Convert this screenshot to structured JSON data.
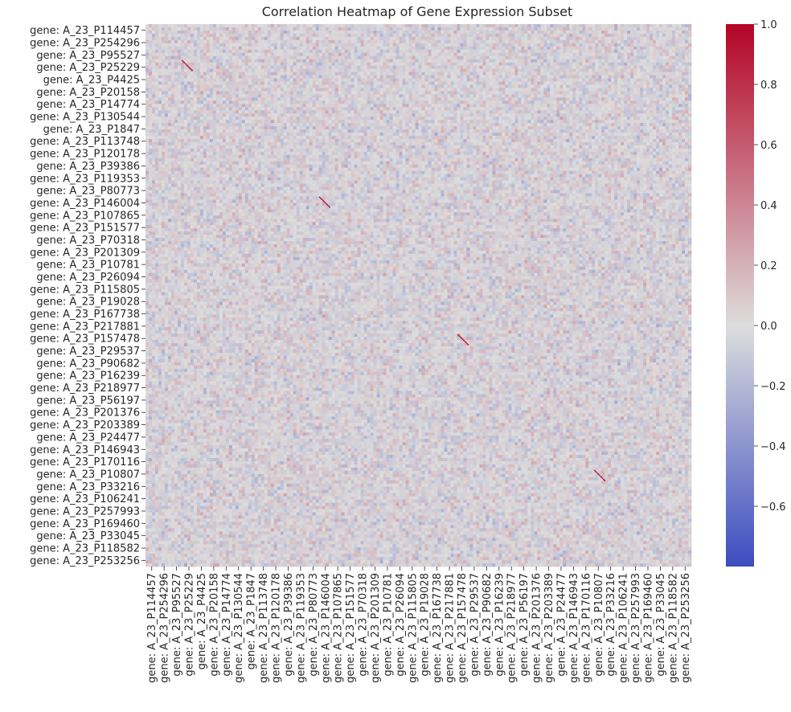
{
  "chart_data": {
    "type": "heatmap",
    "title": "Correlation Heatmap of Gene Expression Subset",
    "xlabel": "",
    "ylabel": "",
    "colormap": "coolwarm",
    "colors": {
      "low": "#3b4cc0",
      "mid": "#dddddd",
      "high": "#b40426"
    },
    "tick_labels": [
      "gene: A_23_P114457",
      "gene: A_23_P254296",
      "gene: A_23_P95527",
      "gene: A_23_P25229",
      "gene: A_23_P4425",
      "gene: A_23_P20158",
      "gene: A_23_P14774",
      "gene: A_23_P130544",
      "gene: A_23_P1847",
      "gene: A_23_P113748",
      "gene: A_23_P120178",
      "gene: A_23_P39386",
      "gene: A_23_P119353",
      "gene: A_23_P80773",
      "gene: A_23_P146004",
      "gene: A_23_P107865",
      "gene: A_23_P151577",
      "gene: A_23_P70318",
      "gene: A_23_P201309",
      "gene: A_23_P10781",
      "gene: A_23_P26094",
      "gene: A_23_P115805",
      "gene: A_23_P19028",
      "gene: A_23_P167738",
      "gene: A_23_P217881",
      "gene: A_23_P157478",
      "gene: A_23_P29537",
      "gene: A_23_P90682",
      "gene: A_23_P16239",
      "gene: A_23_P218977",
      "gene: A_23_P56197",
      "gene: A_23_P201376",
      "gene: A_23_P203389",
      "gene: A_23_P24477",
      "gene: A_23_P146943",
      "gene: A_23_P170116",
      "gene: A_23_P10807",
      "gene: A_23_P33216",
      "gene: A_23_P106241",
      "gene: A_23_P257993",
      "gene: A_23_P169460",
      "gene: A_23_P33045",
      "gene: A_23_P118582",
      "gene: A_23_P253256"
    ],
    "colorbar": {
      "vmin": -0.8,
      "vmax": 1.0,
      "ticks": [
        -0.6,
        -0.4,
        -0.2,
        0.0,
        0.2,
        0.4,
        0.6,
        0.8,
        1.0
      ],
      "tick_labels": [
        "−0.6",
        "−0.4",
        "−0.2",
        "0.0",
        "0.2",
        "0.4",
        "0.6",
        "0.8",
        "1.0"
      ]
    },
    "typical_correlation_range": [
      -0.3,
      0.3
    ],
    "diagonal_value": 1.0
  }
}
